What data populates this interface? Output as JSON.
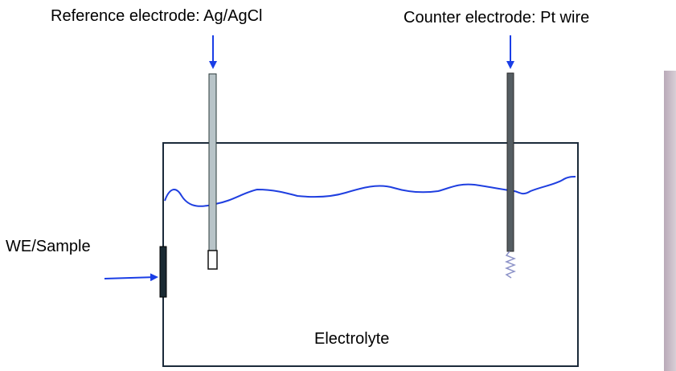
{
  "labels": {
    "reference": "Reference electrode: Ag/AgCl",
    "counter": "Counter electrode: Pt wire",
    "working": "WE/Sample",
    "electrolyte": "Electrolyte"
  }
}
